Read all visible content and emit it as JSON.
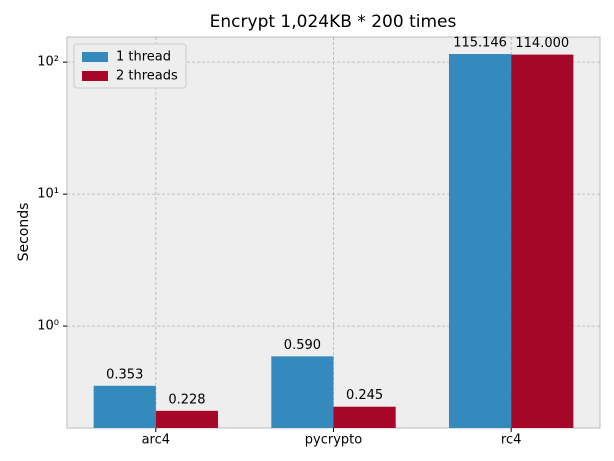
{
  "chart_data": {
    "type": "bar",
    "title": "Encrypt 1,024KB * 200 times",
    "y_label": "Seconds",
    "categories": [
      "arc4",
      "pycrypto",
      "rc4"
    ],
    "series": [
      {
        "name": "1 thread",
        "color": "#348abd",
        "values": [
          0.353,
          0.59,
          115.146
        ],
        "value_labels": [
          "0.353",
          "0.590",
          "115.146"
        ]
      },
      {
        "name": "2 threads",
        "color": "#a60628",
        "values": [
          0.228,
          0.245,
          114.0
        ],
        "value_labels": [
          "0.228",
          "0.245",
          "114.000"
        ]
      }
    ],
    "log_scale": true,
    "ylim": [
      0.169,
      155
    ],
    "yticks": [
      {
        "value": 1,
        "label": "10⁰"
      },
      {
        "value": 10,
        "label": "10¹"
      },
      {
        "value": 100,
        "label": "10²"
      }
    ],
    "grid": true,
    "legend": "upper left"
  }
}
